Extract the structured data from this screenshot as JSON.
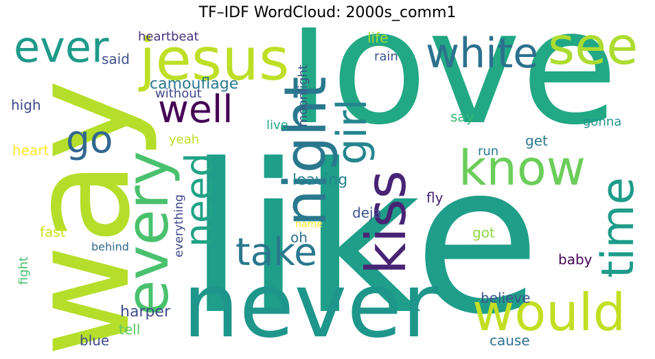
{
  "chart_data": {
    "type": "wordcloud",
    "title": "TF–IDF WordCloud: 2000s_comm1",
    "words": [
      {
        "text": "like",
        "weight": 1.0,
        "color": "#1f9e89"
      },
      {
        "text": "love",
        "weight": 0.95,
        "color": "#22a884"
      },
      {
        "text": "way",
        "weight": 0.85,
        "color": "#b5de2b"
      },
      {
        "text": "never",
        "weight": 0.6,
        "color": "#1f968b"
      },
      {
        "text": "jesus",
        "weight": 0.45,
        "color": "#bddf26"
      },
      {
        "text": "night",
        "weight": 0.42,
        "color": "#2a788e"
      },
      {
        "text": "every",
        "weight": 0.4,
        "color": "#4ac16d"
      },
      {
        "text": "kiss",
        "weight": 0.38,
        "color": "#482475"
      },
      {
        "text": "would",
        "weight": 0.36,
        "color": "#c2df23"
      },
      {
        "text": "see",
        "weight": 0.35,
        "color": "#addc30"
      },
      {
        "text": "white",
        "weight": 0.33,
        "color": "#2c718e"
      },
      {
        "text": "time",
        "weight": 0.32,
        "color": "#1e9b8a"
      },
      {
        "text": "know",
        "weight": 0.31,
        "color": "#6ccd5a"
      },
      {
        "text": "girl",
        "weight": 0.28,
        "color": "#25858e"
      },
      {
        "text": "need",
        "weight": 0.27,
        "color": "#20a386"
      },
      {
        "text": "ever",
        "weight": 0.25,
        "color": "#1f9a8a"
      },
      {
        "text": "take",
        "weight": 0.24,
        "color": "#2a788e"
      },
      {
        "text": "well",
        "weight": 0.23,
        "color": "#440154"
      },
      {
        "text": "go",
        "weight": 0.2,
        "color": "#31688e"
      },
      {
        "text": "camouflage",
        "weight": 0.09,
        "color": "#2a788e"
      },
      {
        "text": "leaving",
        "weight": 0.09,
        "color": "#25858e"
      },
      {
        "text": "believe",
        "weight": 0.09,
        "color": "#3b528b"
      },
      {
        "text": "harper",
        "weight": 0.09,
        "color": "#3e4a89"
      },
      {
        "text": "heartbeat",
        "weight": 0.08,
        "color": "#46327e"
      },
      {
        "text": "said",
        "weight": 0.08,
        "color": "#3d4e8a"
      },
      {
        "text": "without",
        "weight": 0.08,
        "color": "#3f4788"
      },
      {
        "text": "rain",
        "weight": 0.08,
        "color": "#3b528b"
      },
      {
        "text": "life",
        "weight": 0.08,
        "color": "#a5db36"
      },
      {
        "text": "high",
        "weight": 0.08,
        "color": "#3e4989"
      },
      {
        "text": "heart",
        "weight": 0.08,
        "color": "#fde725"
      },
      {
        "text": "yeah",
        "weight": 0.08,
        "color": "#b8de29"
      },
      {
        "text": "live",
        "weight": 0.08,
        "color": "#22a785"
      },
      {
        "text": "say",
        "weight": 0.08,
        "color": "#35b779"
      },
      {
        "text": "get",
        "weight": 0.08,
        "color": "#2a788e"
      },
      {
        "text": "gonna",
        "weight": 0.08,
        "color": "#1f958b"
      },
      {
        "text": "run",
        "weight": 0.08,
        "color": "#2a788e"
      },
      {
        "text": "fly",
        "weight": 0.08,
        "color": "#482878"
      },
      {
        "text": "deja",
        "weight": 0.08,
        "color": "#3b528b"
      },
      {
        "text": "oh",
        "weight": 0.08,
        "color": "#2c728e"
      },
      {
        "text": "got",
        "weight": 0.08,
        "color": "#8fd744"
      },
      {
        "text": "baby",
        "weight": 0.08,
        "color": "#440154"
      },
      {
        "text": "fast",
        "weight": 0.08,
        "color": "#cde11d"
      },
      {
        "text": "tell",
        "weight": 0.08,
        "color": "#5ec962"
      },
      {
        "text": "blue",
        "weight": 0.08,
        "color": "#3e4989"
      },
      {
        "text": "cause",
        "weight": 0.08,
        "color": "#2c728e"
      },
      {
        "text": "moonlight",
        "weight": 0.07,
        "color": "#3b528b"
      },
      {
        "text": "everything",
        "weight": 0.07,
        "color": "#3f4788"
      },
      {
        "text": "fight",
        "weight": 0.07,
        "color": "#4ac16d"
      },
      {
        "text": "behind",
        "weight": 0.06,
        "color": "#31688e"
      },
      {
        "text": "name",
        "weight": 0.06,
        "color": "#fde725"
      }
    ]
  }
}
